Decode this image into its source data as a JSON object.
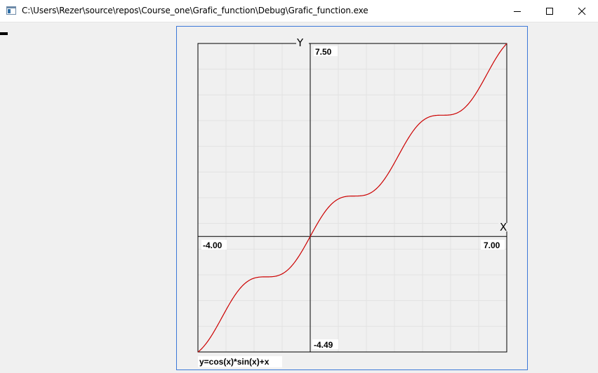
{
  "window": {
    "title": "C:\\Users\\Rezer\\source\\repos\\Course_one\\Grafic_function\\Debug\\Grafic_function.exe"
  },
  "graph": {
    "x_axis_name": "X",
    "y_axis_name": "Y",
    "x_min_label": "-4.00",
    "x_max_label": "7.00",
    "y_max_label": "7.50",
    "y_min_label": "-4.49",
    "formula": "y=cos(x)*sin(x)+x",
    "curve_color": "#cc0000",
    "frame_color": "#3c78d8"
  },
  "chart_data": {
    "type": "line",
    "function": "y=cos(x)*sin(x)+x",
    "xlim": [
      -4.0,
      7.0
    ],
    "ylim": [
      -4.49,
      7.5
    ],
    "grid": true,
    "series": [
      {
        "color": "#cc0000"
      }
    ]
  }
}
